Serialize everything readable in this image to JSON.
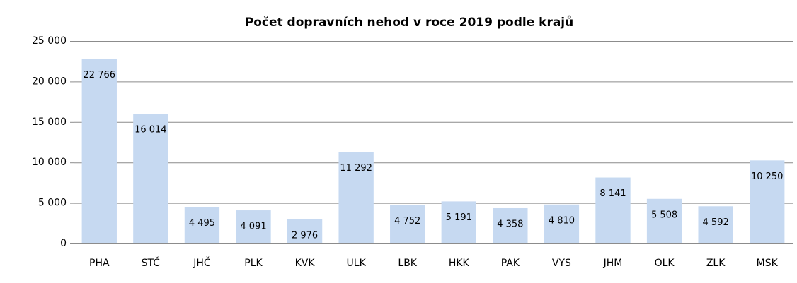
{
  "chart_data": {
    "type": "bar",
    "title": "Počet dopravních nehod v roce 2019 podle krajů",
    "categories": [
      "PHA",
      "STČ",
      "JHČ",
      "PLK",
      "KVK",
      "ULK",
      "LBK",
      "HKK",
      "PAK",
      "VYS",
      "JHM",
      "OLK",
      "ZLK",
      "MSK"
    ],
    "values": [
      22766,
      16014,
      4495,
      4091,
      2976,
      11292,
      4752,
      5191,
      4358,
      4810,
      8141,
      5508,
      4592,
      10250
    ],
    "value_labels": [
      "22 766",
      "16 014",
      "4 495",
      "4 091",
      "2 976",
      "11 292",
      "4 752",
      "5 191",
      "4 358",
      "4 810",
      "8 141",
      "5 508",
      "4 592",
      "10 250"
    ],
    "color": "#c6d9f1",
    "ylim": [
      0,
      25000
    ],
    "yticks": [
      0,
      {
        "value": 5000,
        "label": "5 000"
      },
      {
        "value": 10000,
        "label": "10 000"
      },
      {
        "value": 15000,
        "label": "15 000"
      },
      {
        "value": 20000,
        "label": "20 000"
      },
      {
        "value": 25000,
        "label": "25 000"
      }
    ],
    "grid": true
  }
}
